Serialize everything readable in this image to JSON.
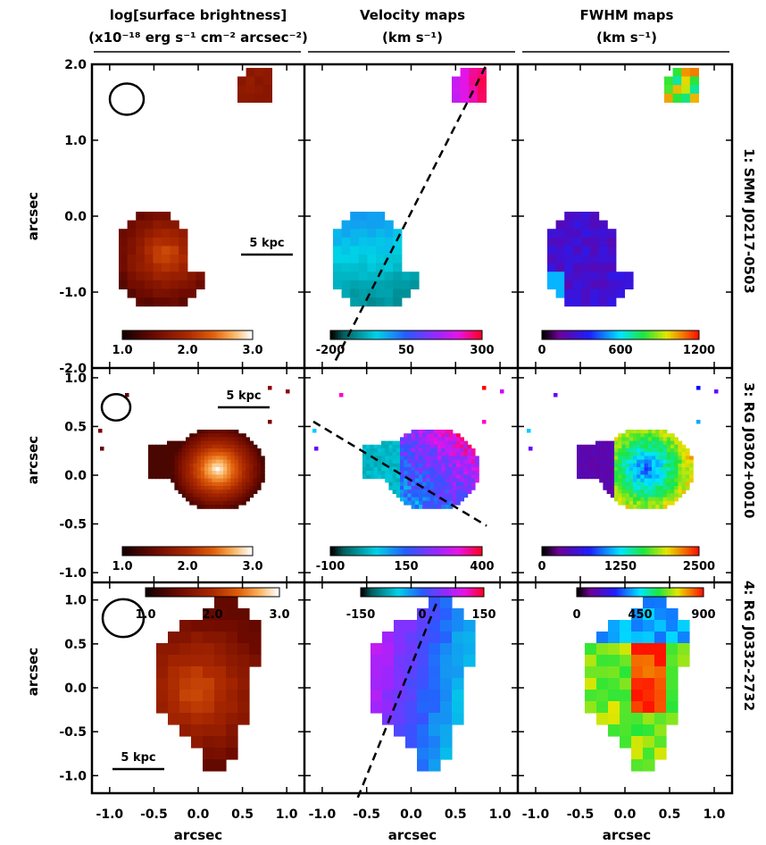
{
  "figure": {
    "column_headers": [
      {
        "line1": "log[surface brightness]",
        "line2": "(x10⁻¹⁸ erg s⁻¹ cm⁻² arcsec⁻²)"
      },
      {
        "line1": "Velocity maps",
        "line2": "(km s⁻¹)"
      },
      {
        "line1": "FWHM maps",
        "line2": "(km s⁻¹)"
      }
    ],
    "row_labels": [
      "1: SMM J0217-0503",
      "3: RG J0302+0010",
      "4: RG J0332-2732"
    ],
    "xlabel": "arcsec",
    "ylabel": "arcsec",
    "scale_bar_label": "5 kpc"
  },
  "chart_data": [
    {
      "type": "heatmap",
      "row": 0,
      "column": 0,
      "quantity": "log surface brightness",
      "xlim": [
        -1.2,
        1.2
      ],
      "ylim": [
        -2.0,
        2.0
      ],
      "yticks": [
        {
          "v": 2.0,
          "t": "2.0"
        },
        {
          "v": 1.0,
          "t": "1.0"
        },
        {
          "v": 0.0,
          "t": "0.0"
        },
        {
          "v": -1.0,
          "t": "-1.0"
        },
        {
          "v": -2.0,
          "t": "-2.0"
        }
      ],
      "colorbar": {
        "colormap": "red-temperature",
        "ticks": [
          "1.0",
          "2.0",
          "3.0"
        ],
        "range": [
          1.0,
          3.0
        ]
      },
      "beam": true,
      "scale_bar": "5 kpc"
    },
    {
      "type": "heatmap",
      "row": 0,
      "column": 1,
      "quantity": "velocity",
      "xlim": [
        -1.2,
        1.2
      ],
      "ylim": [
        -2.0,
        2.0
      ],
      "colorbar": {
        "colormap": "rainbow",
        "ticks": [
          "-200",
          "50",
          "300"
        ],
        "range": [
          -200,
          300
        ]
      },
      "kinematic_axis": [
        [
          -0.85,
          -1.9
        ],
        [
          0.85,
          2.0
        ]
      ]
    },
    {
      "type": "heatmap",
      "row": 0,
      "column": 2,
      "quantity": "FWHM",
      "xlim": [
        -1.2,
        1.2
      ],
      "ylim": [
        -2.0,
        2.0
      ],
      "colorbar": {
        "colormap": "rainbow",
        "ticks": [
          "0",
          "600",
          "1200"
        ],
        "range": [
          0,
          1200
        ]
      }
    },
    {
      "type": "heatmap",
      "row": 1,
      "column": 0,
      "quantity": "log surface brightness",
      "xlim": [
        -1.2,
        1.2
      ],
      "ylim": [
        -1.1,
        1.1
      ],
      "yticks": [
        {
          "v": 1.0,
          "t": "1.0"
        },
        {
          "v": 0.5,
          "t": "0.5"
        },
        {
          "v": 0.0,
          "t": "0.0"
        },
        {
          "v": -0.5,
          "t": "-0.5"
        },
        {
          "v": -1.0,
          "t": "-1.0"
        }
      ],
      "colorbar": {
        "colormap": "red-temperature",
        "ticks": [
          "1.0",
          "2.0",
          "3.0"
        ],
        "range": [
          1.0,
          3.0
        ]
      },
      "beam": true,
      "scale_bar": "5 kpc"
    },
    {
      "type": "heatmap",
      "row": 1,
      "column": 1,
      "quantity": "velocity",
      "xlim": [
        -1.2,
        1.2
      ],
      "ylim": [
        -1.1,
        1.1
      ],
      "colorbar": {
        "colormap": "rainbow",
        "ticks": [
          "-100",
          "150",
          "400"
        ],
        "range": [
          -100,
          400
        ]
      },
      "kinematic_axis": [
        [
          -1.1,
          0.55
        ],
        [
          0.85,
          -0.52
        ]
      ]
    },
    {
      "type": "heatmap",
      "row": 1,
      "column": 2,
      "quantity": "FWHM",
      "xlim": [
        -1.2,
        1.2
      ],
      "ylim": [
        -1.1,
        1.1
      ],
      "colorbar": {
        "colormap": "rainbow",
        "ticks": [
          "0",
          "1250",
          "2500"
        ],
        "range": [
          0,
          2500
        ]
      }
    },
    {
      "type": "heatmap",
      "row": 2,
      "column": 0,
      "quantity": "log surface brightness",
      "xlim": [
        -1.2,
        1.2
      ],
      "ylim": [
        -1.2,
        1.2
      ],
      "xticks": [
        "-1.0",
        "-0.5",
        "0.0",
        "0.5",
        "1.0"
      ],
      "yticks": [
        {
          "v": 1.0,
          "t": "1.0"
        },
        {
          "v": 0.5,
          "t": "0.5"
        },
        {
          "v": 0.0,
          "t": "0.0"
        },
        {
          "v": -0.5,
          "t": "-0.5"
        },
        {
          "v": -1.0,
          "t": "-1.0"
        }
      ],
      "colorbar": {
        "colormap": "red-temperature",
        "ticks": [
          "1.0",
          "2.0",
          "3.0"
        ],
        "range": [
          1.0,
          3.0
        ]
      },
      "beam": true,
      "scale_bar": "5 kpc"
    },
    {
      "type": "heatmap",
      "row": 2,
      "column": 1,
      "quantity": "velocity",
      "xlim": [
        -1.2,
        1.2
      ],
      "ylim": [
        -1.2,
        1.2
      ],
      "xticks": [
        "-1.0",
        "-0.5",
        "0.0",
        "0.5",
        "1.0"
      ],
      "colorbar": {
        "colormap": "rainbow",
        "ticks": [
          "-150",
          "0",
          "150"
        ],
        "range": [
          -150,
          150
        ]
      },
      "kinematic_axis": [
        [
          -0.6,
          -1.25
        ],
        [
          0.3,
          1.0
        ]
      ]
    },
    {
      "type": "heatmap",
      "row": 2,
      "column": 2,
      "quantity": "FWHM",
      "xlim": [
        -1.2,
        1.2
      ],
      "ylim": [
        -1.2,
        1.2
      ],
      "xticks": [
        "-1.0",
        "-0.5",
        "0.0",
        "0.5",
        "1.0"
      ],
      "colorbar": {
        "colormap": "rainbow",
        "ticks": [
          "0",
          "450",
          "900"
        ],
        "range": [
          0,
          900
        ]
      }
    }
  ]
}
